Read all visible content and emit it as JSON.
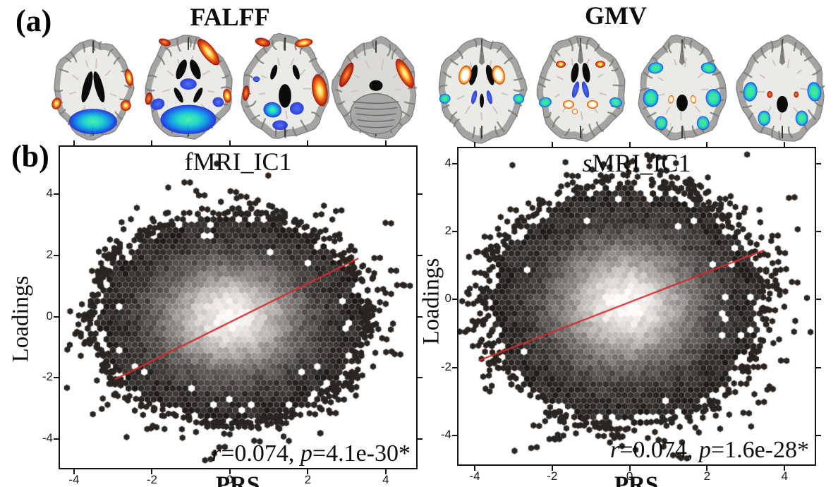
{
  "panel_a": {
    "label": "(a)",
    "groups": [
      {
        "id": "falff",
        "title": "FALFF",
        "n_slices": 4
      },
      {
        "id": "gmv",
        "title": "GMV",
        "n_slices": 4
      }
    ],
    "overlay_colors": {
      "positive_hot": [
        "#9c0f0a",
        "#f1610e",
        "#ffd84d",
        "#ffffff"
      ],
      "negative_cool": [
        "#1f30dd",
        "#0f8fe8",
        "#2fe09a"
      ]
    }
  },
  "panel_b": {
    "label": "(b)"
  },
  "chart_data": [
    {
      "type": "hexbin",
      "title": "fMRI_IC1",
      "title_italic_prefix": "",
      "title_rest": "fMRI_IC1",
      "xlabel": "PRS",
      "ylabel": "Loadings",
      "xticks": [
        -4,
        -2,
        0,
        2,
        4
      ],
      "yticks": [
        4,
        2,
        0,
        -2,
        -4
      ],
      "xlim": [
        -4.36,
        4.78
      ],
      "ylim": [
        -4.94,
        5.54
      ],
      "r": 0.074,
      "p": "4.1e-30",
      "significant": true,
      "stats": {
        "r_label": "r",
        "r_value": "=0.074, ",
        "p_label": "p",
        "p_value": "=4.1e-30*"
      },
      "regression_line": {
        "x1": -2.95,
        "y1": -2.05,
        "x2": 3.3,
        "y2": 1.9
      },
      "distribution": {
        "shape": "gaussian-hexbin",
        "center": [
          0,
          -0.05
        ],
        "spread": [
          3.35,
          3.3
        ],
        "colormap": "white core to black rim"
      },
      "colors": {
        "line": "#d42a2a",
        "hex_dark": "#2b2521"
      }
    },
    {
      "type": "hexbin",
      "title": "sMRI_IC1",
      "title_italic_prefix": "s",
      "title_rest": "MRI_IC1",
      "xlabel": "PRS",
      "ylabel": "Loadings",
      "xticks": [
        -4,
        -2,
        0,
        2,
        4
      ],
      "yticks": [
        4,
        2,
        0,
        -2,
        -4
      ],
      "xlim": [
        -4.42,
        4.78
      ],
      "ylim": [
        -4.85,
        4.45
      ],
      "r": 0.074,
      "p": "1.6e-28",
      "significant": true,
      "stats": {
        "r_label": "r",
        "r_value": "=0.074, ",
        "p_label": "p",
        "p_value": "=1.6e-28*"
      },
      "regression_line": {
        "x1": -3.9,
        "y1": -1.8,
        "x2": 3.47,
        "y2": 1.45
      },
      "distribution": {
        "shape": "gaussian-hexbin",
        "center": [
          -0.1,
          -0.15
        ],
        "spread": [
          3.45,
          3.4
        ],
        "colormap": "white core to black rim"
      },
      "colors": {
        "line": "#d42a2a",
        "hex_dark": "#2b2521"
      }
    }
  ]
}
